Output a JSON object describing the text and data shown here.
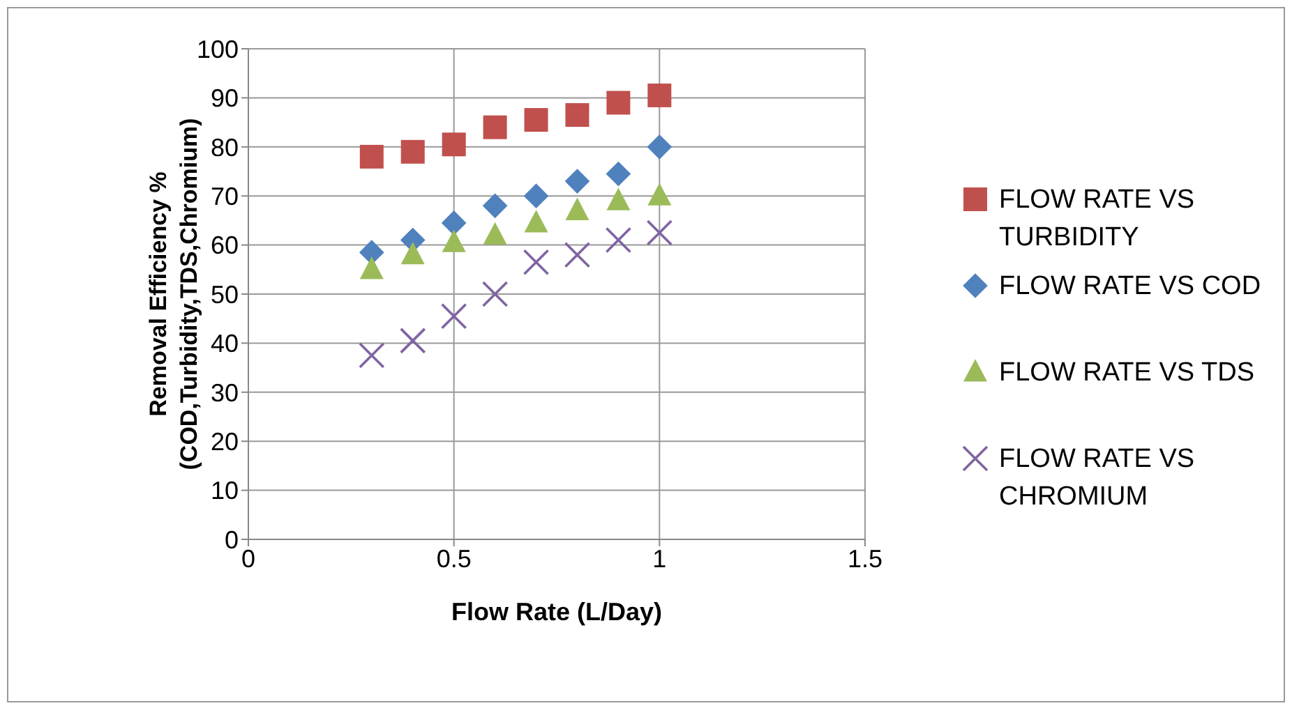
{
  "chart_data": {
    "type": "scatter",
    "xlabel": "Flow Rate (L/Day)",
    "ylabel": "Removal Efficiency % (COD,Turbidity,TDS,Chromium)",
    "x": [
      0.3,
      0.4,
      0.5,
      0.6,
      0.7,
      0.8,
      0.9,
      1
    ],
    "xlim": [
      0,
      1.5
    ],
    "xticks": [
      0,
      0.5,
      1,
      1.5
    ],
    "ylim": [
      0,
      100
    ],
    "yticks": [
      0,
      10,
      20,
      30,
      40,
      50,
      60,
      70,
      80,
      90,
      100
    ],
    "grid": true,
    "legend": "right",
    "series": [
      {
        "name": "FLOW RATE VS TURBIDITY",
        "color": "#c0504d",
        "marker": "square",
        "values": [
          78,
          79,
          80.5,
          84,
          85.5,
          86.5,
          89,
          90.5
        ]
      },
      {
        "name": "FLOW RATE VS COD",
        "color": "#4f81bd",
        "marker": "diamond",
        "values": [
          58.5,
          61,
          64.5,
          68,
          70,
          73,
          74.5,
          80
        ]
      },
      {
        "name": "FLOW RATE VS TDS",
        "color": "#9bbb59",
        "marker": "triangle",
        "values": [
          55,
          58,
          60.5,
          62,
          64.5,
          67,
          69,
          70
        ]
      },
      {
        "name": "FLOW RATE VS CHROMIUM",
        "color": "#8064a2",
        "marker": "cross",
        "values": [
          37.5,
          40.5,
          45.5,
          50,
          56.5,
          58,
          61,
          62.5
        ]
      }
    ]
  }
}
